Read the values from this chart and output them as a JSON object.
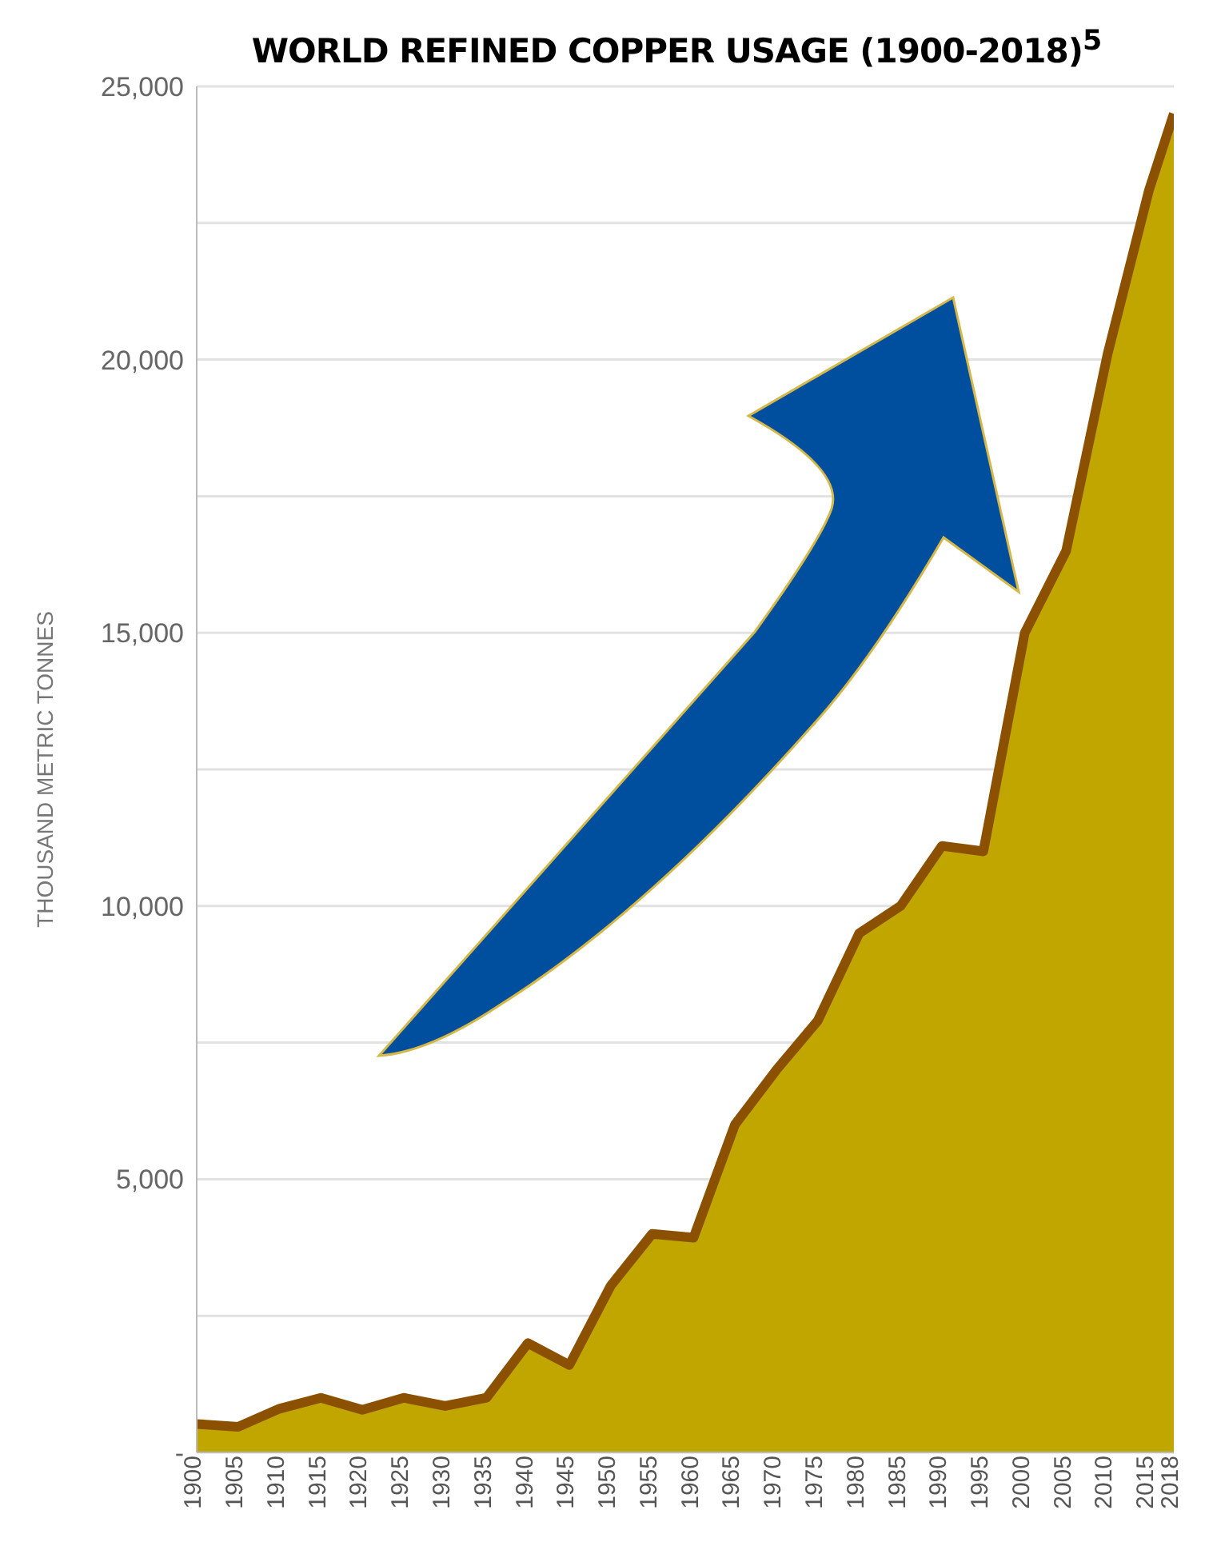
{
  "chart_data": {
    "type": "area",
    "title": "WORLD REFINED COPPER USAGE (1900-2018)$^{5}$",
    "ylabel": "THOUSAND METRIC TONNES",
    "x": [
      1900,
      1905,
      1910,
      1915,
      1920,
      1925,
      1930,
      1935,
      1940,
      1945,
      1950,
      1955,
      1960,
      1965,
      1970,
      1975,
      1980,
      1985,
      1990,
      1995,
      2000,
      2005,
      2010,
      2015,
      2018
    ],
    "series": [
      {
        "color": "#c2a600",
        "values": [
          520,
          470,
          800,
          1000,
          780,
          1000,
          850,
          1000,
          2000,
          1600,
          3050,
          4000,
          3930,
          6000,
          7000,
          7900,
          9500,
          10000,
          11100,
          11000,
          15000,
          16500,
          20100,
          23100,
          24500
        ]
      }
    ],
    "xlim": [
      1900,
      2018
    ],
    "xticks": [
      1900,
      1905,
      1910,
      1915,
      1920,
      1925,
      1930,
      1935,
      1940,
      1945,
      1950,
      1955,
      1960,
      1965,
      1970,
      1975,
      1980,
      1985,
      1990,
      1995,
      2000,
      2005,
      2010,
      2015,
      2018
    ],
    "ylim": [
      0,
      25000
    ],
    "yticks": [
      {
        "value": 0,
        "label": "-"
      },
      {
        "value": 2500,
        "label": null
      },
      {
        "value": 5000,
        "label": "5,000"
      },
      {
        "value": 7500,
        "label": null
      },
      {
        "value": 10000,
        "label": "10,000"
      },
      {
        "value": 12500,
        "label": null
      },
      {
        "value": 15000,
        "label": "15,000"
      },
      {
        "value": 17500,
        "label": null
      },
      {
        "value": 20000,
        "label": "20,000"
      },
      {
        "value": 22500,
        "label": null
      },
      {
        "value": 25000,
        "label": "25,000"
      }
    ],
    "grid": "y",
    "legend": false
  }
}
